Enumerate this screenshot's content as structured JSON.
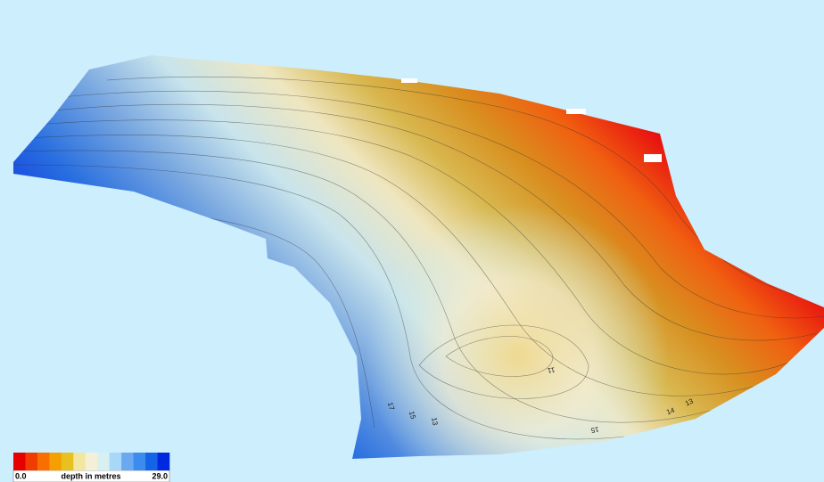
{
  "legend": {
    "colors": [
      "#e60000",
      "#f03c00",
      "#f86e00",
      "#f5a000",
      "#e8c020",
      "#f2e6a0",
      "#f4f0d8",
      "#d8f0f0",
      "#a8d8f8",
      "#6aa8f0",
      "#3c8cf0",
      "#1464e8",
      "#0028e0"
    ],
    "min_label": "0.0",
    "title": "depth in metres",
    "max_label": "29.0"
  },
  "contour_labels": [
    "17",
    "15",
    "13",
    "11",
    "14",
    "13",
    "15"
  ]
}
